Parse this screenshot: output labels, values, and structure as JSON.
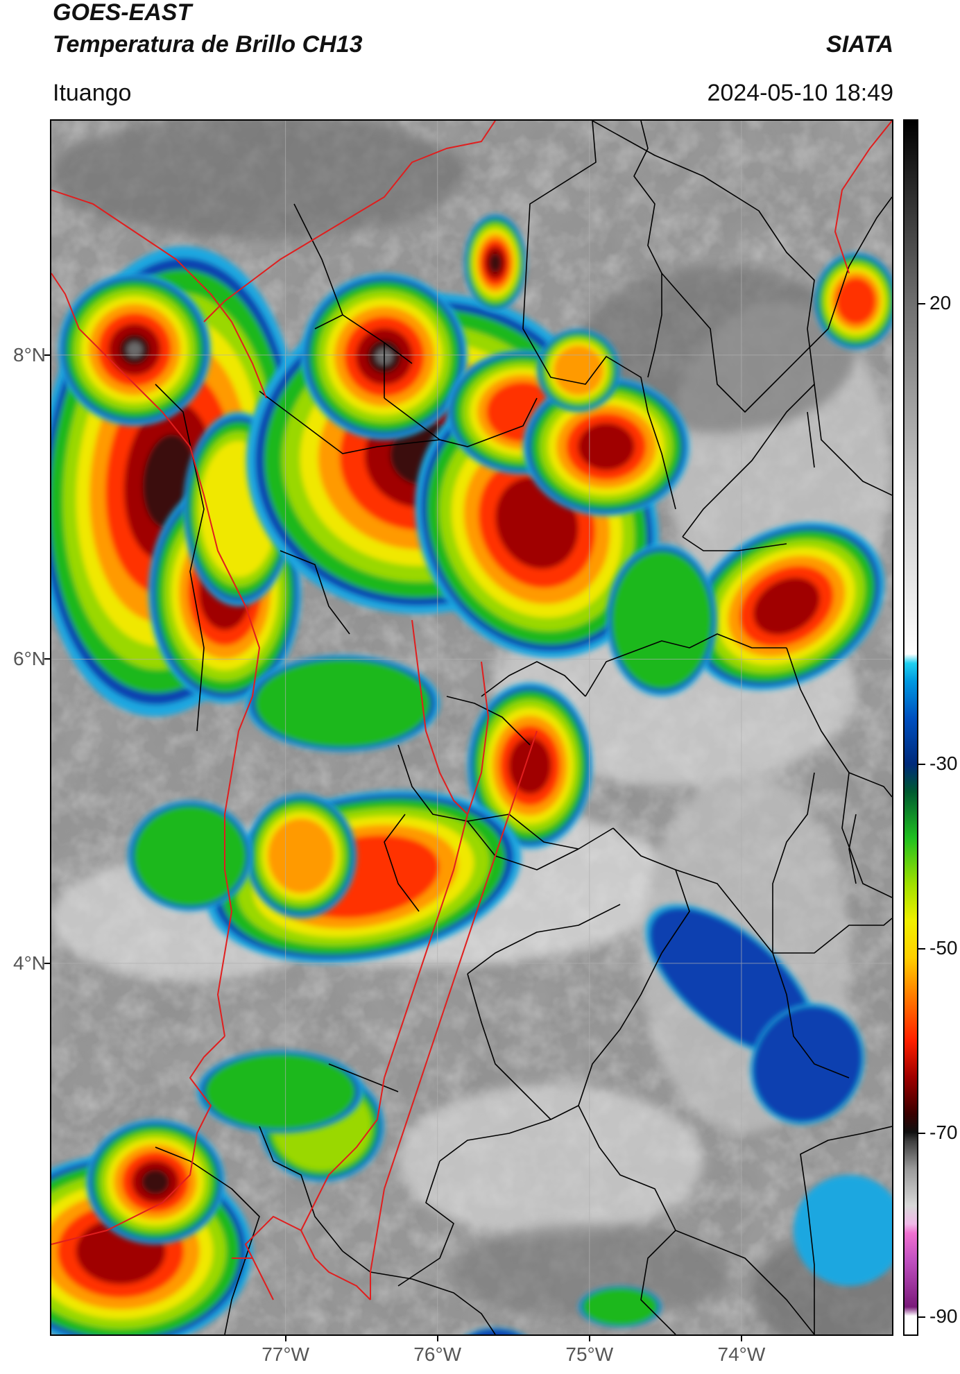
{
  "header": {
    "title_line1": "GOES-EAST",
    "title_line2": "Temperatura de Brillo CH13",
    "brand": "SIATA",
    "location": "Ituango",
    "datetime": "2024-05-10 18:49"
  },
  "map": {
    "lon_ticks": [
      {
        "value": -77,
        "label": "77°W"
      },
      {
        "value": -76,
        "label": "76°W"
      },
      {
        "value": -75,
        "label": "75°W"
      },
      {
        "value": -74,
        "label": "74°W"
      }
    ],
    "lat_ticks": [
      {
        "value": 8,
        "label": "8°N"
      },
      {
        "value": 6,
        "label": "6°N"
      },
      {
        "value": 4,
        "label": "4°N"
      }
    ],
    "extent": {
      "lon_min": -78.55,
      "lon_max": -73.0,
      "lat_min": 1.55,
      "lat_max": 9.55
    },
    "colors": {
      "border_national": "#e01e1e",
      "border_regional": "#000000",
      "background_gray": "#8a8a8a"
    }
  },
  "colorbar": {
    "title": "",
    "ticks": [
      {
        "value": 20,
        "label": "20"
      },
      {
        "value": -30,
        "label": "-30"
      },
      {
        "value": -50,
        "label": "-50"
      },
      {
        "value": -70,
        "label": "-70"
      },
      {
        "value": -90,
        "label": "-90"
      }
    ],
    "range": [
      -92,
      40
    ],
    "stops": [
      {
        "value": -92,
        "color": "#ffffff"
      },
      {
        "value": -90,
        "color": "#ffffff"
      },
      {
        "value": -89,
        "color": "#7a1a7a"
      },
      {
        "value": -84,
        "color": "#c050c0"
      },
      {
        "value": -81,
        "color": "#f070d0"
      },
      {
        "value": -80,
        "color": "#f0b8e8"
      },
      {
        "value": -78,
        "color": "#d8d8d8"
      },
      {
        "value": -74,
        "color": "#9a9a9a"
      },
      {
        "value": -71,
        "color": "#404040"
      },
      {
        "value": -70,
        "color": "#101010"
      },
      {
        "value": -68,
        "color": "#3a0000"
      },
      {
        "value": -64,
        "color": "#a00000"
      },
      {
        "value": -60,
        "color": "#ff2000"
      },
      {
        "value": -55,
        "color": "#ff8000"
      },
      {
        "value": -51,
        "color": "#ffd000"
      },
      {
        "value": -47,
        "color": "#f0f000"
      },
      {
        "value": -43,
        "color": "#a0e000"
      },
      {
        "value": -38,
        "color": "#20c020"
      },
      {
        "value": -33,
        "color": "#005a30"
      },
      {
        "value": -30,
        "color": "#002a7a"
      },
      {
        "value": -25,
        "color": "#0050c0"
      },
      {
        "value": -21,
        "color": "#0098e0"
      },
      {
        "value": -19,
        "color": "#20d0f0"
      },
      {
        "value": -18,
        "color": "#ffffff"
      },
      {
        "value": 0,
        "color": "#c8c8c8"
      },
      {
        "value": 20,
        "color": "#707070"
      },
      {
        "value": 40,
        "color": "#000000"
      }
    ]
  }
}
